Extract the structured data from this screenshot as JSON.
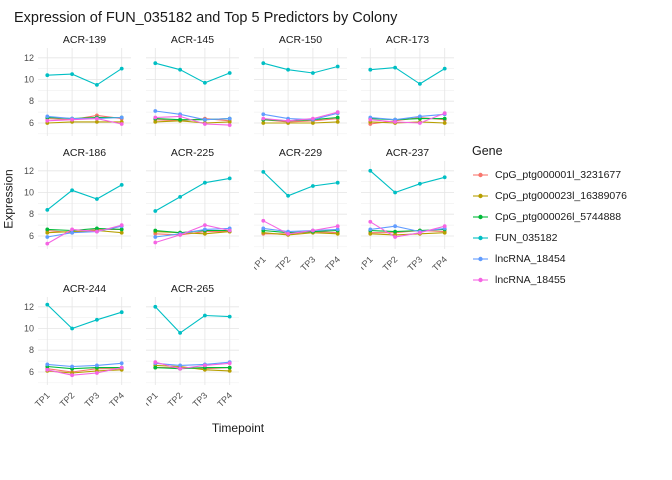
{
  "chart_data": {
    "type": "line",
    "title": "Expression of FUN_035182 and Top 5 Predictors by Colony",
    "xlabel": "Timepoint",
    "ylabel": "Expression",
    "legend_title": "Gene",
    "legend_position": "right",
    "grid": true,
    "x_ticks": [
      "TP1",
      "TP2",
      "TP3",
      "TP4"
    ],
    "y_ticks": [
      6,
      8,
      10,
      12
    ],
    "y_minor_ticks": [
      5,
      7,
      9,
      11
    ],
    "ylim": [
      4.8,
      12.9
    ],
    "series": [
      {
        "name": "CpG_ptg000001l_3231677",
        "color": "#F8766D"
      },
      {
        "name": "CpG_ptg000023l_16389076",
        "color": "#B79F00"
      },
      {
        "name": "CpG_ptg000026l_5744888",
        "color": "#00BA38"
      },
      {
        "name": "FUN_035182",
        "color": "#00BFC4"
      },
      {
        "name": "lncRNA_18454",
        "color": "#619CFF"
      },
      {
        "name": "lncRNA_18455",
        "color": "#F564E3"
      }
    ],
    "facets": [
      {
        "name": "ACR-139",
        "values": [
          [
            6.4,
            6.3,
            6.7,
            6.4
          ],
          [
            6.0,
            6.1,
            6.1,
            6.1
          ],
          [
            6.5,
            6.4,
            6.5,
            6.5
          ],
          [
            10.4,
            10.5,
            9.5,
            11.0
          ],
          [
            6.6,
            6.4,
            6.4,
            6.5
          ],
          [
            6.2,
            6.3,
            6.4,
            5.9
          ]
        ]
      },
      {
        "name": "ACR-145",
        "values": [
          [
            6.3,
            6.2,
            6.4,
            6.2
          ],
          [
            6.1,
            6.2,
            6.0,
            6.1
          ],
          [
            6.4,
            6.3,
            6.3,
            6.4
          ],
          [
            11.5,
            10.9,
            9.7,
            10.6
          ],
          [
            7.1,
            6.8,
            6.3,
            6.4
          ],
          [
            6.5,
            6.6,
            5.9,
            5.8
          ]
        ]
      },
      {
        "name": "ACR-150",
        "values": [
          [
            6.3,
            6.1,
            6.2,
            6.4
          ],
          [
            6.0,
            6.0,
            6.0,
            6.1
          ],
          [
            6.3,
            6.2,
            6.3,
            6.5
          ],
          [
            11.5,
            10.9,
            10.6,
            11.2
          ],
          [
            6.8,
            6.4,
            6.3,
            6.9
          ],
          [
            6.4,
            6.2,
            6.4,
            7.0
          ]
        ]
      },
      {
        "name": "ACR-173",
        "values": [
          [
            5.9,
            6.2,
            6.5,
            6.3
          ],
          [
            6.1,
            6.0,
            6.1,
            6.0
          ],
          [
            6.4,
            6.3,
            6.4,
            6.4
          ],
          [
            10.9,
            11.1,
            9.6,
            11.0
          ],
          [
            6.5,
            6.3,
            6.6,
            6.8
          ],
          [
            6.3,
            6.1,
            6.0,
            6.9
          ]
        ]
      },
      {
        "name": "ACR-186",
        "values": [
          [
            6.5,
            6.3,
            6.6,
            6.6
          ],
          [
            6.3,
            6.4,
            6.5,
            6.3
          ],
          [
            6.6,
            6.5,
            6.7,
            6.6
          ],
          [
            8.4,
            10.2,
            9.4,
            10.7
          ],
          [
            5.9,
            6.3,
            6.4,
            6.9
          ],
          [
            5.3,
            6.6,
            6.4,
            7.0
          ]
        ]
      },
      {
        "name": "ACR-225",
        "values": [
          [
            6.2,
            6.1,
            6.4,
            6.4
          ],
          [
            6.4,
            6.3,
            6.2,
            6.4
          ],
          [
            6.5,
            6.3,
            6.5,
            6.5
          ],
          [
            8.3,
            9.6,
            10.9,
            11.3
          ],
          [
            5.9,
            6.2,
            6.6,
            6.7
          ],
          [
            5.4,
            6.1,
            7.0,
            6.5
          ]
        ]
      },
      {
        "name": "ACR-229",
        "values": [
          [
            6.2,
            6.2,
            6.4,
            6.3
          ],
          [
            6.3,
            6.1,
            6.3,
            6.2
          ],
          [
            6.5,
            6.3,
            6.4,
            6.5
          ],
          [
            11.9,
            9.7,
            10.6,
            10.9
          ],
          [
            6.7,
            6.4,
            6.5,
            6.6
          ],
          [
            7.4,
            6.2,
            6.5,
            6.9
          ]
        ]
      },
      {
        "name": "ACR-237",
        "values": [
          [
            6.3,
            6.3,
            6.5,
            6.4
          ],
          [
            6.2,
            6.1,
            6.2,
            6.3
          ],
          [
            6.5,
            6.4,
            6.5,
            6.6
          ],
          [
            12.0,
            10.0,
            10.8,
            11.4
          ],
          [
            6.6,
            6.9,
            6.4,
            6.7
          ],
          [
            7.3,
            5.9,
            6.3,
            6.9
          ]
        ]
      },
      {
        "name": "ACR-244",
        "values": [
          [
            6.3,
            6.0,
            6.3,
            6.3
          ],
          [
            6.1,
            5.9,
            6.1,
            6.2
          ],
          [
            6.5,
            6.3,
            6.4,
            6.4
          ],
          [
            12.2,
            10.0,
            10.8,
            11.5
          ],
          [
            6.7,
            6.5,
            6.6,
            6.8
          ],
          [
            6.2,
            5.7,
            5.9,
            6.4
          ]
        ]
      },
      {
        "name": "ACR-265",
        "values": [
          [
            6.4,
            6.4,
            6.3,
            6.4
          ],
          [
            6.6,
            6.5,
            6.2,
            6.1
          ],
          [
            6.4,
            6.3,
            6.4,
            6.4
          ],
          [
            12.0,
            9.6,
            11.2,
            11.1
          ],
          [
            6.8,
            6.6,
            6.7,
            6.9
          ],
          [
            6.9,
            6.3,
            6.6,
            6.8
          ]
        ]
      }
    ]
  }
}
